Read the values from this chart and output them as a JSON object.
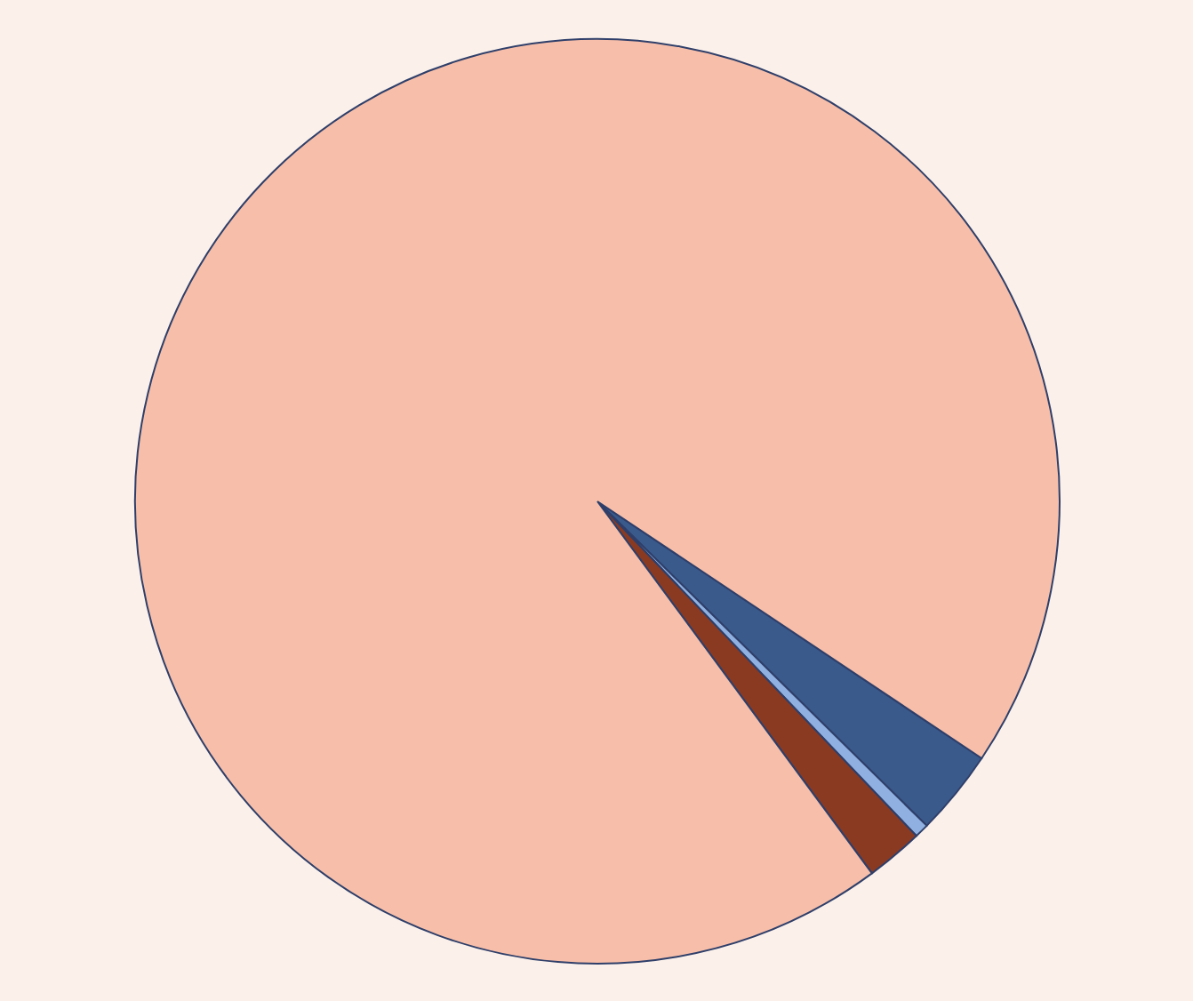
{
  "chart_data": {
    "type": "pie",
    "categories": [
      null,
      null,
      null,
      null
    ],
    "values": [
      3,
      0.5,
      2,
      94.5
    ],
    "colors": [
      "#3a5a8c",
      "#8fb0e0",
      "#8b3a22",
      "#f7bfa9"
    ],
    "legend": false
  }
}
